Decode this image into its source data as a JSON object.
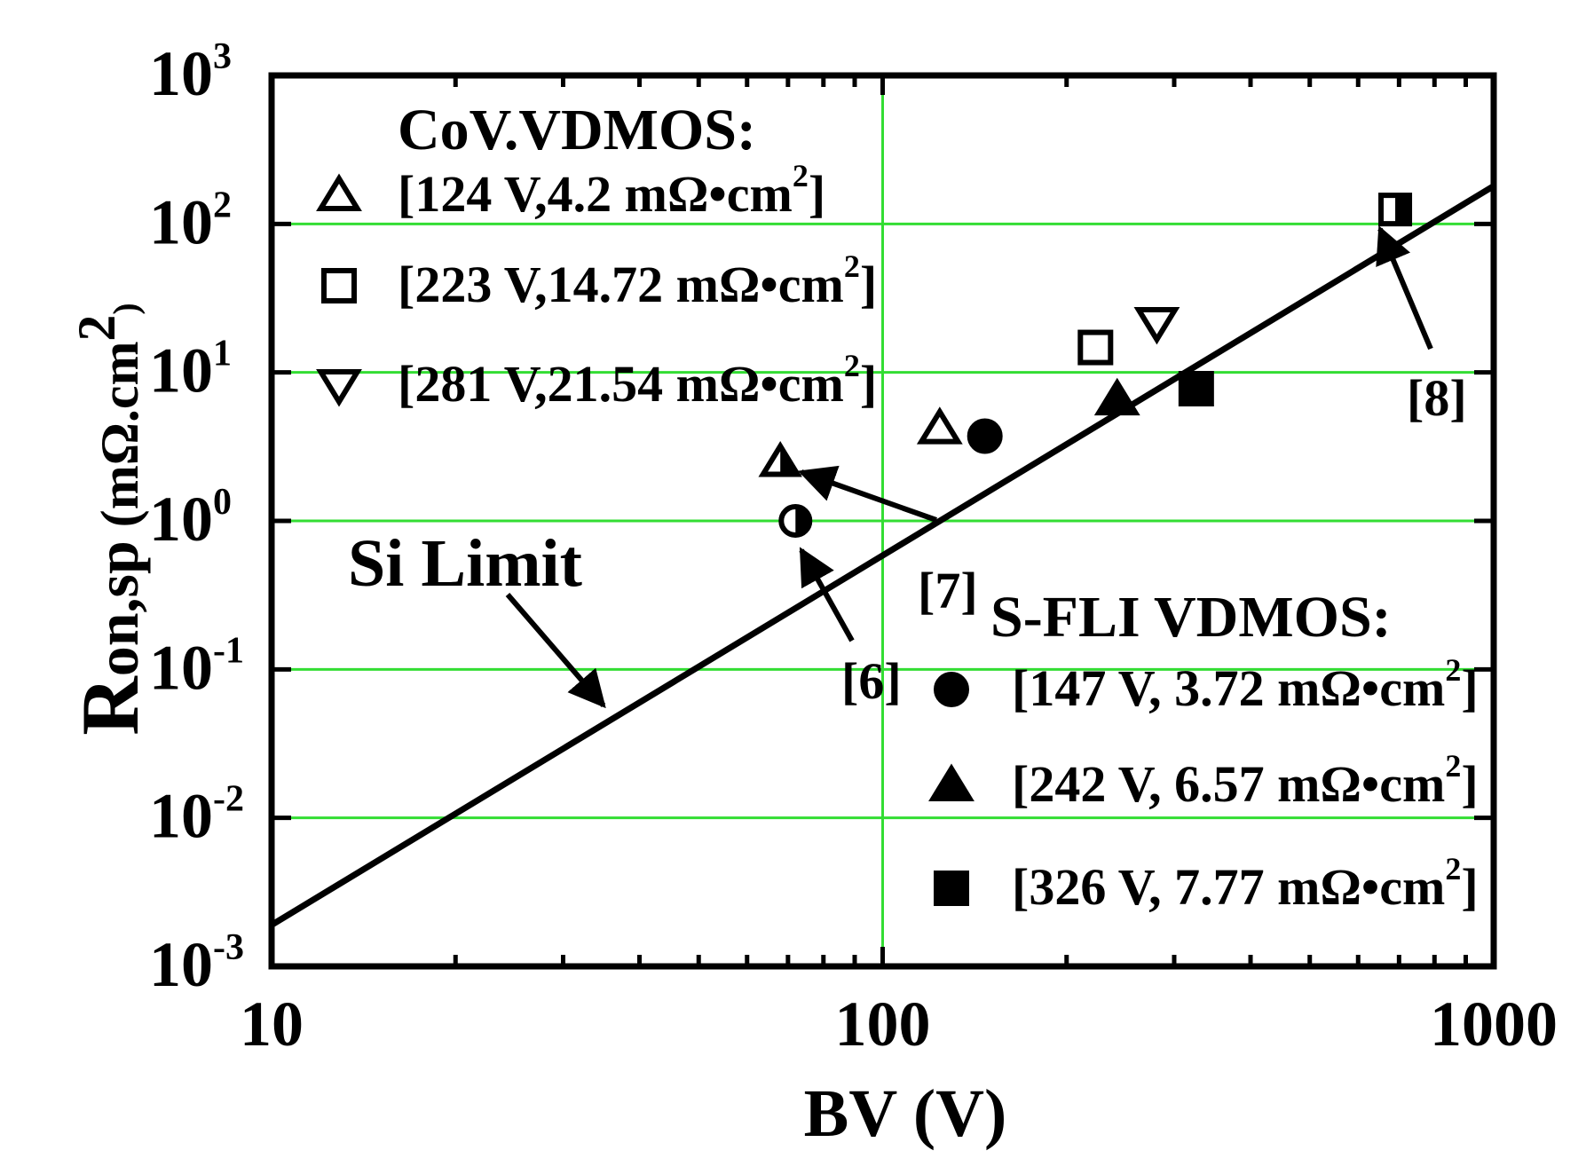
{
  "chart_data": {
    "type": "scatter",
    "xlabel": "BV (V)",
    "ylabel_parts": {
      "main": "R",
      "sub": "on,sp",
      "unit_open": " (mΩ.cm",
      "unit_exp": "2",
      "unit_close": ")"
    },
    "x_scale": "log",
    "y_scale": "log",
    "xlim": [
      10,
      1000
    ],
    "ylim": [
      0.001,
      1000
    ],
    "x_ticks": [
      {
        "value": 10,
        "label": "10"
      },
      {
        "value": 100,
        "label": "100"
      },
      {
        "value": 1000,
        "label": "1000"
      }
    ],
    "y_ticks": [
      {
        "value": 0.001,
        "base": "10",
        "exp": "-3"
      },
      {
        "value": 0.01,
        "base": "10",
        "exp": "-2"
      },
      {
        "value": 0.1,
        "base": "10",
        "exp": "-1"
      },
      {
        "value": 1,
        "base": "10",
        "exp": "0"
      },
      {
        "value": 10,
        "base": "10",
        "exp": "1"
      },
      {
        "value": 100,
        "base": "10",
        "exp": "2"
      },
      {
        "value": 1000,
        "base": "10",
        "exp": "3"
      }
    ],
    "grid": true,
    "grid_color": "#33dd33",
    "line": {
      "name": "Si Limit",
      "x": [
        10,
        1000
      ],
      "y": [
        0.0019,
        180
      ]
    },
    "groups": [
      {
        "title": "CoV.VDMOS:",
        "entries": [
          {
            "marker": "triangle-up-open",
            "label": "[124 V,4.2 mΩ•cm",
            "exp": "2",
            "close": "]",
            "x": 124,
            "y": 4.2
          },
          {
            "marker": "square-open",
            "label": "[223 V,14.72 mΩ•cm",
            "exp": "2",
            "close": "]",
            "x": 223,
            "y": 14.72
          },
          {
            "marker": "triangle-down-open",
            "label": "[281 V,21.54 mΩ•cm",
            "exp": "2",
            "close": "]",
            "x": 281,
            "y": 21.54
          }
        ]
      },
      {
        "title": "S-FLI VDMOS:",
        "entries": [
          {
            "marker": "circle-filled",
            "label": "[147 V, 3.72 mΩ•cm",
            "exp": "2",
            "close": "]",
            "x": 147,
            "y": 3.72
          },
          {
            "marker": "triangle-up-filled",
            "label": "[242 V, 6.57 mΩ•cm",
            "exp": "2",
            "close": "]",
            "x": 242,
            "y": 6.57
          },
          {
            "marker": "square-filled",
            "label": "[326 V, 7.77 mΩ•cm",
            "exp": "2",
            "close": "]",
            "x": 326,
            "y": 7.77
          }
        ]
      }
    ],
    "references": [
      {
        "label": "[6]",
        "marker": "circle-half",
        "x": 72,
        "y": 1.0
      },
      {
        "label": "[7]",
        "marker": "triangle-up-half",
        "x": 68,
        "y": 2.5
      },
      {
        "label": "[8]",
        "marker": "square-half",
        "x": 690,
        "y": 125
      }
    ],
    "annotations": [
      {
        "text": "Si Limit"
      }
    ]
  }
}
